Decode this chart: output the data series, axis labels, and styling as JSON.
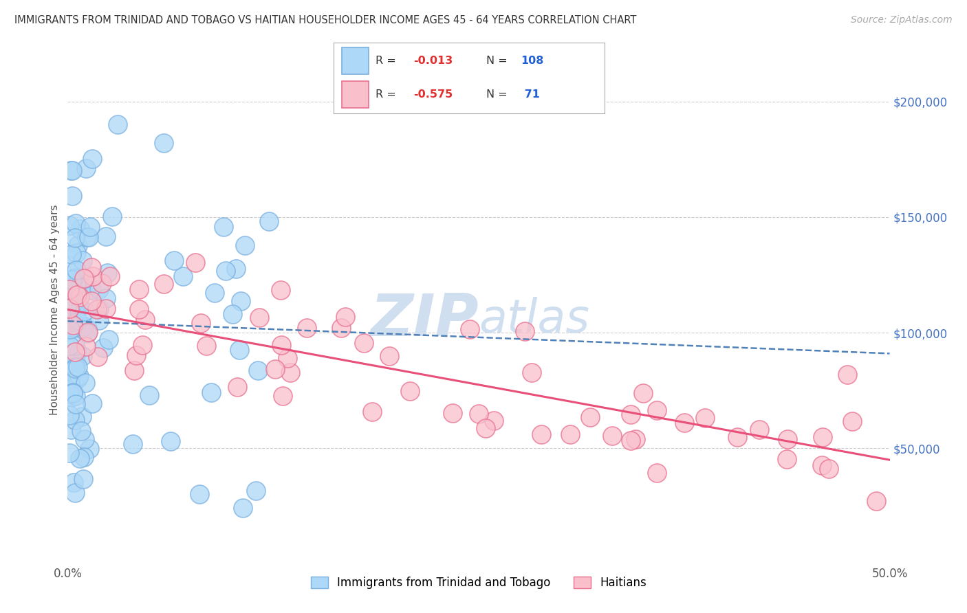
{
  "title": "IMMIGRANTS FROM TRINIDAD AND TOBAGO VS HAITIAN HOUSEHOLDER INCOME AGES 45 - 64 YEARS CORRELATION CHART",
  "source": "Source: ZipAtlas.com",
  "ylabel": "Householder Income Ages 45 - 64 years",
  "ytick_values": [
    50000,
    100000,
    150000,
    200000
  ],
  "xlim": [
    0.0,
    0.5
  ],
  "ylim": [
    0,
    220000
  ],
  "r_tt": -0.013,
  "n_tt": 108,
  "r_ha": -0.575,
  "n_ha": 71,
  "color_tt": "#add8f7",
  "color_ha": "#f9c0cc",
  "edge_color_tt": "#7ab0e0",
  "edge_color_ha": "#e87090",
  "line_color_tt": "#5080b8",
  "line_color_ha": "#e8507a",
  "legend_label_tt": "Immigrants from Trinidad and Tobago",
  "legend_label_ha": "Haitians",
  "watermark_color": "#d0dff0",
  "background_color": "#ffffff",
  "grid_color": "#cccccc",
  "title_color": "#333333",
  "source_color": "#aaaaaa",
  "ytick_color": "#4472C4",
  "xtick_color": "#555555"
}
